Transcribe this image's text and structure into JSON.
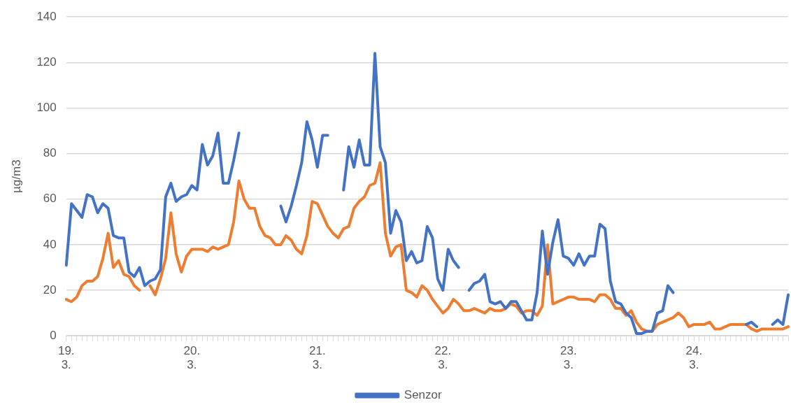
{
  "chart_data": {
    "type": "line",
    "ylabel": "µg/m3",
    "categories": [
      "19. 3.",
      null,
      null,
      null,
      null,
      null,
      null,
      null,
      null,
      null,
      null,
      null,
      null,
      null,
      null,
      null,
      null,
      null,
      null,
      null,
      null,
      null,
      null,
      null,
      "20. 3.",
      null,
      null,
      null,
      null,
      null,
      null,
      null,
      null,
      null,
      null,
      null,
      null,
      null,
      null,
      null,
      null,
      null,
      null,
      null,
      null,
      null,
      null,
      null,
      "21. 3.",
      null,
      null,
      null,
      null,
      null,
      null,
      null,
      null,
      null,
      null,
      null,
      null,
      null,
      null,
      null,
      null,
      null,
      null,
      null,
      null,
      null,
      null,
      null,
      "22. 3.",
      null,
      null,
      null,
      null,
      null,
      null,
      null,
      null,
      null,
      null,
      null,
      null,
      null,
      null,
      null,
      null,
      null,
      null,
      null,
      null,
      null,
      null,
      null,
      "23. 3.",
      null,
      null,
      null,
      null,
      null,
      null,
      null,
      null,
      null,
      null,
      null,
      null,
      null,
      null,
      null,
      null,
      null,
      null,
      null,
      null,
      null,
      null,
      null,
      "24. 3.",
      null,
      null,
      null,
      null,
      null,
      null,
      null,
      null,
      null,
      null,
      null,
      null,
      null,
      null,
      null,
      null,
      null,
      null
    ],
    "series": [
      {
        "name": "Senzor",
        "color": "#4472c4",
        "values": [
          31,
          58,
          55,
          52,
          62,
          61,
          54,
          58,
          56,
          44,
          43,
          43,
          28,
          26,
          30,
          22,
          24,
          25,
          29,
          61,
          67,
          59,
          61,
          62,
          66,
          64,
          84,
          75,
          79,
          89,
          67,
          67,
          77,
          89,
          null,
          null,
          null,
          null,
          null,
          null,
          null,
          57,
          50,
          57,
          66,
          76,
          94,
          86,
          74,
          88,
          88,
          null,
          null,
          64,
          83,
          74,
          86,
          75,
          75,
          124,
          83,
          76,
          45,
          55,
          50,
          33,
          37,
          32,
          33,
          48,
          43,
          25,
          20,
          38,
          33,
          30,
          null,
          20,
          23,
          24,
          27,
          15,
          14,
          15,
          12,
          15,
          15,
          11,
          7,
          7,
          19,
          46,
          27,
          41,
          51,
          35,
          34,
          31,
          36,
          31,
          35,
          35,
          49,
          47,
          24,
          15,
          14,
          10,
          8,
          1,
          1,
          2,
          2,
          10,
          11,
          22,
          19,
          null,
          null,
          null,
          null,
          null,
          null,
          null,
          null,
          null,
          null,
          null,
          null,
          null,
          5,
          6,
          4,
          null,
          null,
          5,
          7,
          5,
          18
        ]
      },
      {
        "color": "#ed7d31",
        "values": [
          16,
          15,
          17,
          22,
          24,
          24,
          26,
          34,
          45,
          30,
          33,
          27,
          26,
          22,
          20,
          null,
          22,
          18,
          25,
          34,
          54,
          36,
          28,
          35,
          38,
          38,
          38,
          37,
          39,
          38,
          39,
          40,
          50,
          68,
          60,
          56,
          56,
          48,
          44,
          43,
          40,
          40,
          44,
          42,
          38,
          36,
          44,
          59,
          58,
          53,
          48,
          45,
          43,
          47,
          48,
          56,
          59,
          61,
          66,
          67,
          76,
          45,
          35,
          39,
          40,
          20,
          19,
          17,
          22,
          20,
          16,
          13,
          10,
          12,
          16,
          14,
          11,
          11,
          12,
          11,
          10,
          12,
          11,
          11,
          12,
          14,
          13,
          10,
          11,
          11,
          9,
          13,
          40,
          14,
          15,
          16,
          17,
          17,
          16,
          16,
          16,
          15,
          18,
          18,
          16,
          12,
          12,
          9,
          11,
          6,
          3,
          2,
          2,
          5,
          6,
          7,
          8,
          10,
          8,
          4,
          5,
          5,
          5,
          6,
          3,
          3,
          4,
          5,
          5,
          5,
          5,
          3,
          2,
          3,
          3,
          3,
          3,
          3,
          4
        ]
      }
    ],
    "ylim": [
      0,
      140
    ],
    "yticks": [
      0,
      20,
      40,
      60,
      80,
      100,
      120,
      140
    ],
    "grid": "y",
    "legend": "bottom",
    "marker": "none",
    "line_style": "solid"
  }
}
